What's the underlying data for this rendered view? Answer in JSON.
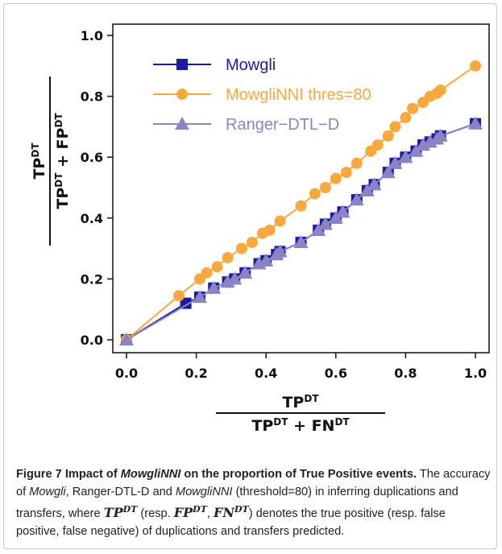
{
  "chart_data": {
    "type": "line",
    "x_label": {
      "numerator": [
        {
          "text": "TP"
        },
        {
          "text": "DT",
          "sup": true
        }
      ],
      "denominator": [
        {
          "text": "TP"
        },
        {
          "text": "DT",
          "sup": true
        },
        {
          "text": " + FN"
        },
        {
          "text": "DT",
          "sup": true
        }
      ]
    },
    "y_label": {
      "numerator": [
        {
          "text": "TP"
        },
        {
          "text": "DT",
          "sup": true
        }
      ],
      "denominator": [
        {
          "text": "TP"
        },
        {
          "text": "DT",
          "sup": true
        },
        {
          "text": " + FP"
        },
        {
          "text": "DT",
          "sup": true
        }
      ]
    },
    "xlim": [
      0,
      1
    ],
    "ylim": [
      0,
      1
    ],
    "xticks": [
      {
        "value": 0,
        "label": "0.0"
      },
      {
        "value": 0.2,
        "label": "0.2"
      },
      {
        "value": 0.4,
        "label": "0.4"
      },
      {
        "value": 0.6,
        "label": "0.6"
      },
      {
        "value": 0.8,
        "label": "0.8"
      },
      {
        "value": 1,
        "label": "1.0"
      }
    ],
    "yticks": [
      {
        "value": 0,
        "label": "0.0"
      },
      {
        "value": 0.2,
        "label": "0.2"
      },
      {
        "value": 0.4,
        "label": "0.4"
      },
      {
        "value": 0.6,
        "label": "0.6"
      },
      {
        "value": 0.8,
        "label": "0.8"
      },
      {
        "value": 1,
        "label": "1.0"
      }
    ],
    "legend": "upper left",
    "series": [
      {
        "name": "Mowgli",
        "color": "#1c1ca3",
        "marker": "square",
        "x": [
          0,
          0.17,
          0.21,
          0.25,
          0.29,
          0.31,
          0.34,
          0.38,
          0.4,
          0.43,
          0.44,
          0.5,
          0.55,
          0.57,
          0.6,
          0.62,
          0.66,
          0.69,
          0.71,
          0.75,
          0.77,
          0.8,
          0.83,
          0.85,
          0.87,
          0.89,
          0.9,
          1.0
        ],
        "values": [
          0,
          0.12,
          0.14,
          0.17,
          0.19,
          0.2,
          0.22,
          0.25,
          0.26,
          0.28,
          0.29,
          0.32,
          0.36,
          0.38,
          0.4,
          0.42,
          0.46,
          0.49,
          0.51,
          0.55,
          0.58,
          0.6,
          0.62,
          0.64,
          0.65,
          0.66,
          0.67,
          0.71
        ]
      },
      {
        "name": "MowgliNNI thres=80",
        "color": "#f7a940",
        "marker": "circle",
        "x": [
          0,
          0.15,
          0.21,
          0.23,
          0.26,
          0.29,
          0.33,
          0.36,
          0.39,
          0.41,
          0.44,
          0.5,
          0.54,
          0.57,
          0.6,
          0.63,
          0.66,
          0.7,
          0.72,
          0.75,
          0.77,
          0.8,
          0.82,
          0.85,
          0.87,
          0.89,
          0.9,
          1.0
        ],
        "values": [
          0,
          0.145,
          0.2,
          0.22,
          0.24,
          0.27,
          0.3,
          0.32,
          0.35,
          0.36,
          0.39,
          0.44,
          0.48,
          0.5,
          0.53,
          0.55,
          0.58,
          0.62,
          0.64,
          0.67,
          0.7,
          0.73,
          0.76,
          0.78,
          0.8,
          0.81,
          0.82,
          0.9
        ]
      },
      {
        "name": "Ranger−DTL−D",
        "color": "#8a84c4",
        "marker": "triangle",
        "x": [
          0,
          0.21,
          0.25,
          0.29,
          0.31,
          0.34,
          0.38,
          0.4,
          0.43,
          0.44,
          0.5,
          0.55,
          0.57,
          0.6,
          0.62,
          0.66,
          0.69,
          0.71,
          0.75,
          0.77,
          0.8,
          0.83,
          0.85,
          0.87,
          0.89,
          0.9,
          1.0
        ],
        "values": [
          0,
          0.14,
          0.17,
          0.19,
          0.2,
          0.22,
          0.25,
          0.26,
          0.28,
          0.29,
          0.32,
          0.36,
          0.38,
          0.4,
          0.42,
          0.46,
          0.49,
          0.51,
          0.55,
          0.58,
          0.6,
          0.62,
          0.64,
          0.65,
          0.66,
          0.67,
          0.71
        ]
      }
    ]
  },
  "caption": {
    "title": [
      {
        "text": "Figure 7 Impact of ",
        "style": "bold"
      },
      {
        "text": "MowgliNNI",
        "style": "bold-italic"
      },
      {
        "text": " on the proportion of True Positive events.",
        "style": "bold"
      }
    ],
    "body": [
      {
        "text": " The accuracy of "
      },
      {
        "text": "Mowgli",
        "style": "italic"
      },
      {
        "text": ", Ranger-DTL-D and "
      },
      {
        "text": "MowgliNNI",
        "style": "italic"
      },
      {
        "text": " (threshold=80) in inferring duplications and transfers, where "
      },
      {
        "text": "TP",
        "style": "math"
      },
      {
        "text": "DT",
        "style": "math-sup"
      },
      {
        "text": " (resp. "
      },
      {
        "text": "FP",
        "style": "math"
      },
      {
        "text": "DT",
        "style": "math-sup"
      },
      {
        "text": ", "
      },
      {
        "text": "FN",
        "style": "math"
      },
      {
        "text": "DT",
        "style": "math-sup"
      },
      {
        "text": ") denotes the true positive (resp. false positive, false negative) of duplications and transfers predicted."
      }
    ]
  }
}
